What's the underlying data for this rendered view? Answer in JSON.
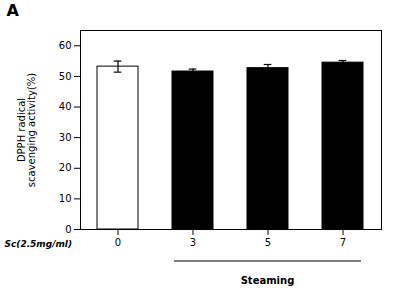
{
  "chart_data": {
    "type": "bar",
    "categories": [
      "0",
      "3",
      "5",
      "7"
    ],
    "values": [
      53.2,
      51.6,
      52.7,
      54.5
    ],
    "errors": [
      1.8,
      0.8,
      1.2,
      0.7
    ],
    "colors": [
      "#ffffff",
      "#000000",
      "#000000",
      "#000000"
    ],
    "ylabel": "DPPH radical\nscavenging activity(%)",
    "annotations": [
      {
        "text": "A"
      },
      {
        "text": "Sc(2.5mg/ml)"
      },
      {
        "text": "Steaming",
        "categories": [
          "3",
          "7"
        ]
      }
    ],
    "ylim": [
      0,
      65
    ],
    "yticks": [
      0,
      10,
      20,
      30,
      40,
      50,
      60
    ],
    "grid": false
  }
}
